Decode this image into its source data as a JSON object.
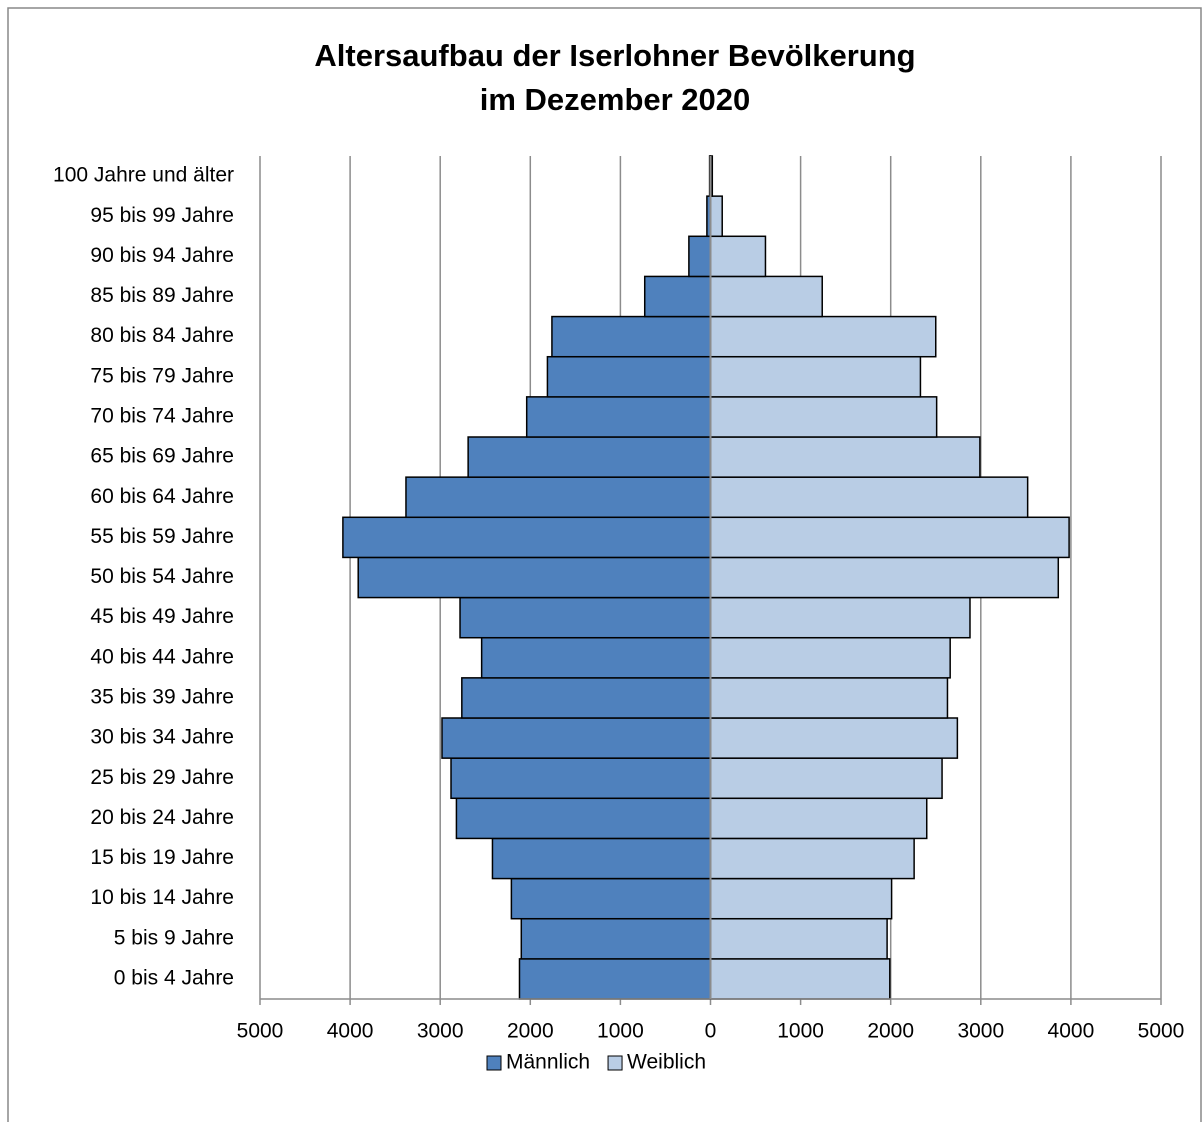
{
  "chart_data": {
    "type": "pyramid",
    "title": [
      "Altersaufbau der Iserlohner Bevölkerung",
      "im Dezember 2020"
    ],
    "categories": [
      "0 bis 4 Jahre",
      "5 bis 9 Jahre",
      "10 bis 14 Jahre",
      "15 bis 19 Jahre",
      "20 bis 24 Jahre",
      "25 bis 29 Jahre",
      "30 bis 34 Jahre",
      "35 bis 39 Jahre",
      "40 bis 44 Jahre",
      "45 bis 49 Jahre",
      "50 bis 54 Jahre",
      "55 bis 59 Jahre",
      "60 bis 64 Jahre",
      "65 bis 69 Jahre",
      "70 bis 74 Jahre",
      "75 bis 79 Jahre",
      "80 bis 84 Jahre",
      "85 bis 89 Jahre",
      "90 bis 94 Jahre",
      "95 bis 99 Jahre",
      "100 Jahre und älter"
    ],
    "series": [
      {
        "name": "Männlich",
        "color": "#4f81bd",
        "values": [
          2120,
          2100,
          2210,
          2420,
          2820,
          2880,
          2980,
          2760,
          2540,
          2780,
          3910,
          4080,
          3380,
          2690,
          2040,
          1810,
          1760,
          730,
          240,
          40,
          10
        ]
      },
      {
        "name": "Weiblich",
        "color": "#b9cde5",
        "values": [
          1990,
          1960,
          2010,
          2260,
          2400,
          2570,
          2740,
          2630,
          2660,
          2880,
          3860,
          3980,
          3520,
          2990,
          2510,
          2330,
          2500,
          1240,
          610,
          130,
          20
        ]
      }
    ],
    "xlim": [
      -5000,
      5000
    ],
    "xticks": [
      {
        "value": -5000,
        "label": "5000"
      },
      {
        "value": -4000,
        "label": "4000"
      },
      {
        "value": -3000,
        "label": "3000"
      },
      {
        "value": -2000,
        "label": "2000"
      },
      {
        "value": -1000,
        "label": "1000"
      },
      0,
      1000,
      2000,
      3000,
      4000,
      5000
    ],
    "grid": true,
    "legend": "bottom"
  }
}
